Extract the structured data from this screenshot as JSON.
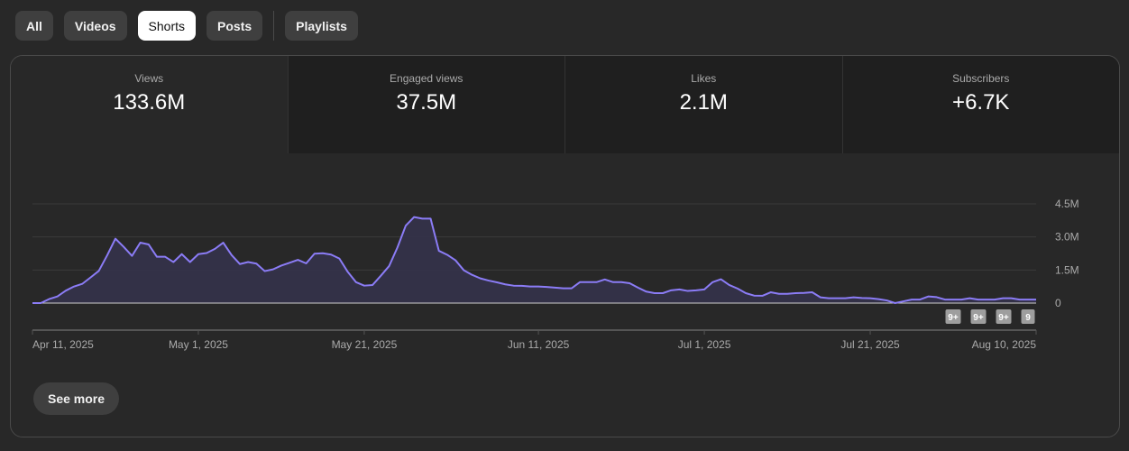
{
  "chips": [
    {
      "label": "All",
      "active": false
    },
    {
      "label": "Videos",
      "active": false
    },
    {
      "label": "Shorts",
      "active": true
    },
    {
      "label": "Posts",
      "active": false
    },
    {
      "label": "Playlists",
      "active": false
    }
  ],
  "metrics": [
    {
      "label": "Views",
      "value": "133.6M",
      "active": true
    },
    {
      "label": "Engaged views",
      "value": "37.5M",
      "active": false
    },
    {
      "label": "Likes",
      "value": "2.1M",
      "active": false
    },
    {
      "label": "Subscribers",
      "value": "+6.7K",
      "active": false
    }
  ],
  "see_more_label": "See more",
  "colors": {
    "line": "#8b7cf6",
    "fill": "#34324a"
  },
  "chart_data": {
    "type": "area",
    "x_start": "2025-04-11",
    "x_end": "2025-08-10",
    "x_ticks": [
      "Apr 11, 2025",
      "May 1, 2025",
      "May 21, 2025",
      "Jun 11, 2025",
      "Jul 1, 2025",
      "Jul 21, 2025",
      "Aug 10, 2025"
    ],
    "x_tick_days": [
      0,
      20,
      40,
      61,
      81,
      101,
      121
    ],
    "y_ticks": [
      {
        "value": 0,
        "label": "0"
      },
      {
        "value": 1.5,
        "label": "1.5M"
      },
      {
        "value": 3.0,
        "label": "3.0M"
      },
      {
        "value": 4.5,
        "label": "4.5M"
      }
    ],
    "ylim": [
      0,
      4.5
    ],
    "y_unit": "M",
    "grid": true,
    "series": [
      {
        "values": [
          0,
          0,
          0.18,
          0.3,
          0.56,
          0.75,
          0.87,
          1.16,
          1.46,
          2.16,
          2.92,
          2.55,
          2.14,
          2.74,
          2.66,
          2.1,
          2.1,
          1.86,
          2.22,
          1.86,
          2.22,
          2.27,
          2.46,
          2.74,
          2.18,
          1.77,
          1.86,
          1.79,
          1.45,
          1.53,
          1.7,
          1.83,
          1.96,
          1.8,
          2.24,
          2.26,
          2.2,
          2.02,
          1.42,
          0.95,
          0.79,
          0.82,
          1.24,
          1.68,
          2.52,
          3.51,
          3.9,
          3.83,
          3.83,
          2.37,
          2.19,
          1.94,
          1.49,
          1.28,
          1.12,
          1.02,
          0.94,
          0.85,
          0.79,
          0.78,
          0.75,
          0.75,
          0.73,
          0.7,
          0.67,
          0.67,
          0.95,
          0.95,
          0.95,
          1.07,
          0.95,
          0.95,
          0.9,
          0.7,
          0.52,
          0.45,
          0.45,
          0.58,
          0.62,
          0.55,
          0.58,
          0.62,
          0.95,
          1.08,
          0.82,
          0.66,
          0.45,
          0.34,
          0.33,
          0.49,
          0.42,
          0.42,
          0.45,
          0.46,
          0.49,
          0.26,
          0.22,
          0.22,
          0.22,
          0.26,
          0.23,
          0.22,
          0.18,
          0.12,
          0.0,
          0.08,
          0.16,
          0.16,
          0.3,
          0.27,
          0.16,
          0.16,
          0.16,
          0.22,
          0.16,
          0.16,
          0.16,
          0.22,
          0.22,
          0.16,
          0.16,
          0.16
        ]
      }
    ],
    "markers": [
      "9+",
      "9+",
      "9+",
      "9"
    ]
  }
}
